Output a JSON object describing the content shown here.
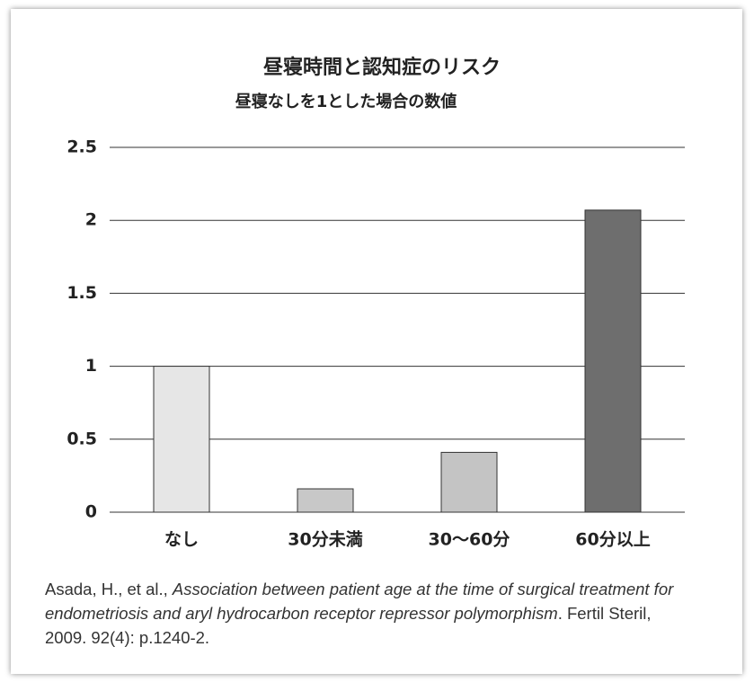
{
  "chart_data": {
    "type": "bar",
    "title": "昼寝時間と認知症のリスク",
    "subtitle": "昼寝なしを1とした場合の数値",
    "categories": [
      "なし",
      "30分未満",
      "30〜60分",
      "60分以上"
    ],
    "values": [
      1.0,
      0.16,
      0.41,
      2.07
    ],
    "colors": [
      "#e6e6e6",
      "#c8c8c8",
      "#c4c4c4",
      "#6e6e6e"
    ],
    "ylim": [
      0,
      2.5
    ],
    "yticks": [
      0,
      0.5,
      1,
      1.5,
      2,
      2.5
    ],
    "grid": true
  },
  "citation": {
    "authors": "Asada, H., et al., ",
    "title": "Association between patient age at the time of surgical treatment for endometriosis and aryl hydrocarbon receptor repressor polymorphism",
    "rest": ". Fertil Steril, 2009. 92(4): p.1240-2."
  }
}
